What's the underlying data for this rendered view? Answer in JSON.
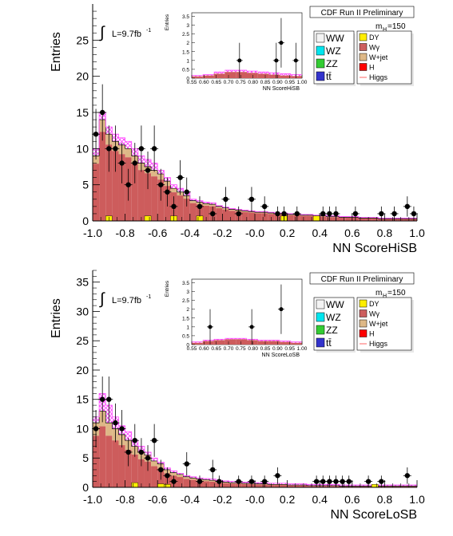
{
  "page": {
    "title": ""
  },
  "legend_entries": {
    "left": [
      {
        "label": "WW",
        "color": "#f4f4f4"
      },
      {
        "label": "WZ",
        "color": "#00e5ee"
      },
      {
        "label": "ZZ",
        "color": "#33cc33"
      },
      {
        "label": "tt̄",
        "color": "#3333cc"
      }
    ],
    "right": [
      {
        "label": "DY",
        "color": "#ffee00"
      },
      {
        "label": "Wγ",
        "color": "#cc5e5e"
      },
      {
        "label": "W+jet",
        "color": "#deb887"
      },
      {
        "label": "H",
        "color": "#ff0000"
      },
      {
        "label": "Higgs",
        "color": "#ff6666",
        "line": true
      }
    ]
  },
  "chart_data": [
    {
      "type": "bar",
      "banner": "CDF Run II Preliminary",
      "mass_label": "m",
      "mass_sub": "H",
      "mass_value": "=150",
      "lumi_label": "L=9.7fb",
      "lumi_sup": "-1",
      "integral_symbol": "∫",
      "xlabel": "NN ScoreHiSB",
      "ylabel": "Entries",
      "xlim": [
        -1.0,
        1.0
      ],
      "ylim": [
        0,
        30
      ],
      "xticks": [
        "-1.0",
        "-0.8",
        "-0.6",
        "-0.4",
        "-0.2",
        "-0.0",
        "0.2",
        "0.4",
        "0.6",
        "0.8",
        "1.0"
      ],
      "xtick_values": [
        -1.0,
        -0.8,
        -0.6,
        -0.4,
        -0.2,
        0.0,
        0.2,
        0.4,
        0.6,
        0.8,
        1.0
      ],
      "yticks": [
        "0",
        "5",
        "10",
        "15",
        "20",
        "25"
      ],
      "ytick_values": [
        0,
        5,
        10,
        15,
        20,
        25
      ],
      "bin_edges_start": -1.0,
      "bin_width": 0.04,
      "background_total": [
        9,
        14,
        12,
        11,
        10.5,
        10,
        9,
        8,
        7.5,
        7,
        6.5,
        5.5,
        4.5,
        4,
        3.5,
        2.8,
        2.6,
        2.4,
        2.3,
        2.0,
        1.8,
        1.6,
        1.5,
        1.4,
        1.3,
        1.2,
        1.2,
        1.1,
        1.0,
        1.0,
        0.9,
        0.9,
        0.8,
        0.8,
        0.7,
        0.7,
        0.6,
        0.6,
        0.5,
        0.5,
        0.5,
        0.4,
        0.4,
        0.4,
        0.3,
        0.3,
        0.3,
        0.3,
        0.3,
        0.3
      ],
      "w_jet_fraction": 0.12,
      "signal_band": [
        10,
        15,
        13,
        12,
        11.5,
        11,
        10,
        9,
        8.5,
        8,
        7,
        6,
        5,
        4.5,
        4,
        3,
        2.8,
        2.6,
        2.5,
        2.1,
        1.9,
        1.7,
        1.6,
        1.5,
        1.4,
        1.3,
        1.3,
        1.2,
        1.1,
        1.1,
        1.0,
        1.0,
        0.9,
        0.9,
        0.8,
        0.8,
        0.7,
        0.7,
        0.6,
        0.6,
        0.6,
        0.5,
        0.5,
        0.5,
        0.4,
        0.4,
        0.4,
        0.4,
        0.4,
        0.4
      ],
      "dy_bins": [
        {
          "x": -0.92,
          "y": 0.7
        },
        {
          "x": -0.68,
          "y": 0.7
        },
        {
          "x": -0.52,
          "y": 0.7
        },
        {
          "x": -0.36,
          "y": 0.7
        },
        {
          "x": 0.16,
          "y": 0.7
        },
        {
          "x": 0.36,
          "y": 0.7
        }
      ],
      "points": [
        {
          "x": -0.98,
          "y": 12,
          "err": 3.5
        },
        {
          "x": -0.94,
          "y": 15,
          "err": 3.9
        },
        {
          "x": -0.9,
          "y": 10,
          "err": 3.2
        },
        {
          "x": -0.86,
          "y": 10,
          "err": 3.2
        },
        {
          "x": -0.82,
          "y": 8,
          "err": 2.8
        },
        {
          "x": -0.78,
          "y": 5,
          "err": 2.2
        },
        {
          "x": -0.74,
          "y": 8,
          "err": 2.8
        },
        {
          "x": -0.7,
          "y": 10,
          "err": 3.2
        },
        {
          "x": -0.66,
          "y": 7,
          "err": 2.6
        },
        {
          "x": -0.62,
          "y": 10,
          "err": 3.2
        },
        {
          "x": -0.58,
          "y": 5,
          "err": 2.2
        },
        {
          "x": -0.54,
          "y": 4,
          "err": 2.0
        },
        {
          "x": -0.5,
          "y": 2,
          "err": 1.4
        },
        {
          "x": -0.46,
          "y": 6,
          "err": 2.4
        },
        {
          "x": -0.42,
          "y": 4,
          "err": 2.0
        },
        {
          "x": -0.34,
          "y": 2,
          "err": 1.4
        },
        {
          "x": -0.26,
          "y": 1,
          "err": 1.0
        },
        {
          "x": -0.18,
          "y": 3,
          "err": 1.7
        },
        {
          "x": -0.1,
          "y": 1,
          "err": 1.0
        },
        {
          "x": -0.02,
          "y": 3,
          "err": 1.7
        },
        {
          "x": 0.06,
          "y": 2,
          "err": 1.4
        },
        {
          "x": 0.14,
          "y": 1,
          "err": 1.0
        },
        {
          "x": 0.18,
          "y": 1,
          "err": 1.0
        },
        {
          "x": 0.26,
          "y": 1,
          "err": 1.0
        },
        {
          "x": 0.42,
          "y": 1,
          "err": 1.0
        },
        {
          "x": 0.46,
          "y": 1,
          "err": 1.0
        },
        {
          "x": 0.5,
          "y": 1,
          "err": 1.0
        },
        {
          "x": 0.62,
          "y": 1,
          "err": 1.0
        },
        {
          "x": 0.78,
          "y": 1,
          "err": 1.0
        },
        {
          "x": 0.86,
          "y": 1,
          "err": 1.0
        },
        {
          "x": 0.94,
          "y": 2,
          "err": 1.4
        },
        {
          "x": 0.98,
          "y": 1,
          "err": 1.0
        }
      ],
      "inset": {
        "xlabel": "NN ScoreHiSB",
        "ylabel": "Entries",
        "xlim": [
          0.55,
          1.0
        ],
        "ylim": [
          0,
          3.7
        ],
        "xticks": [
          "0.55",
          "0.60",
          "0.65",
          "0.70",
          "0.75",
          "0.80",
          "0.85",
          "0.90",
          "0.95",
          "1.00"
        ],
        "xtick_values": [
          0.55,
          0.6,
          0.65,
          0.7,
          0.75,
          0.8,
          0.85,
          0.9,
          0.95,
          1.0
        ],
        "yticks": [
          "0",
          "0.5",
          "1",
          "1.5",
          "2",
          "2.5",
          "3",
          "3.5"
        ],
        "ytick_values": [
          0,
          0.5,
          1,
          1.5,
          2,
          2.5,
          3,
          3.5
        ],
        "background_total": [
          0.1,
          0.15,
          0.25,
          0.35,
          0.35,
          0.3,
          0.25,
          0.2,
          0.15,
          0.12
        ],
        "signal_band": [
          0.15,
          0.2,
          0.35,
          0.45,
          0.45,
          0.4,
          0.35,
          0.3,
          0.25,
          0.2
        ],
        "points": [
          {
            "x": 0.745,
            "y": 1,
            "err": 1.0
          },
          {
            "x": 0.895,
            "y": 1,
            "err": 1.0
          },
          {
            "x": 0.915,
            "y": 2,
            "err": 1.4
          },
          {
            "x": 0.975,
            "y": 1,
            "err": 1.0
          }
        ]
      }
    },
    {
      "type": "bar",
      "banner": "CDF Run II Preliminary",
      "mass_label": "m",
      "mass_sub": "H",
      "mass_value": "=150",
      "lumi_label": "L=9.7fb",
      "lumi_sup": "-1",
      "integral_symbol": "∫",
      "xlabel": "NN ScoreLoSB",
      "ylabel": "Entries",
      "xlim": [
        -1.0,
        1.0
      ],
      "ylim": [
        0,
        37
      ],
      "xticks": [
        "-1.0",
        "-0.8",
        "-0.6",
        "-0.4",
        "-0.2",
        "-0.0",
        "0.2",
        "0.4",
        "0.6",
        "0.8",
        "1.0"
      ],
      "xtick_values": [
        -1.0,
        -0.8,
        -0.6,
        -0.4,
        -0.2,
        0.0,
        0.2,
        0.4,
        0.6,
        0.8,
        1.0
      ],
      "yticks": [
        "0",
        "5",
        "10",
        "15",
        "20",
        "25",
        "30",
        "35"
      ],
      "ytick_values": [
        0,
        5,
        10,
        15,
        20,
        25,
        30,
        35
      ],
      "bin_edges_start": -1.0,
      "bin_width": 0.04,
      "background_total": [
        11,
        13,
        11,
        10,
        9,
        8,
        7,
        6,
        5.5,
        4.5,
        4,
        3,
        2.5,
        2.2,
        1.8,
        1.6,
        1.4,
        1.3,
        1.2,
        1.0,
        0.9,
        0.8,
        0.8,
        0.7,
        0.7,
        0.6,
        0.6,
        0.5,
        0.5,
        0.5,
        0.4,
        0.4,
        0.4,
        0.3,
        0.3,
        0.3,
        0.3,
        0.3,
        0.2,
        0.2,
        0.2,
        0.2,
        0.2,
        0.2,
        0.2,
        0.2,
        0.2,
        0.2,
        0.2,
        0.2
      ],
      "w_jet_fraction": 0.2,
      "signal_band": [
        12,
        16,
        14,
        12,
        10.5,
        9.5,
        8,
        7,
        6,
        5,
        4.3,
        3.3,
        2.8,
        2.4,
        2.0,
        1.8,
        1.6,
        1.5,
        1.4,
        1.2,
        1.1,
        1.0,
        1.0,
        0.9,
        0.9,
        0.8,
        0.8,
        0.7,
        0.7,
        0.7,
        0.6,
        0.6,
        0.6,
        0.5,
        0.5,
        0.5,
        0.5,
        0.5,
        0.4,
        0.4,
        0.4,
        0.4,
        0.4,
        0.4,
        0.4,
        0.4,
        0.4,
        0.4,
        0.4,
        0.4
      ],
      "dy_bins": [
        {
          "x": -0.76,
          "y": 0.8
        },
        {
          "x": -0.6,
          "y": 0.6
        },
        {
          "x": -0.56,
          "y": 0.5
        },
        {
          "x": 0.72,
          "y": 0.5
        }
      ],
      "points": [
        {
          "x": -0.98,
          "y": 10,
          "err": 3.2
        },
        {
          "x": -0.94,
          "y": 15,
          "err": 3.9
        },
        {
          "x": -0.9,
          "y": 15,
          "err": 3.9
        },
        {
          "x": -0.86,
          "y": 11,
          "err": 3.3
        },
        {
          "x": -0.82,
          "y": 10,
          "err": 3.2
        },
        {
          "x": -0.78,
          "y": 6,
          "err": 2.4
        },
        {
          "x": -0.74,
          "y": 8,
          "err": 2.8
        },
        {
          "x": -0.7,
          "y": 6,
          "err": 2.4
        },
        {
          "x": -0.66,
          "y": 5,
          "err": 2.2
        },
        {
          "x": -0.62,
          "y": 8,
          "err": 2.8
        },
        {
          "x": -0.58,
          "y": 3,
          "err": 1.7
        },
        {
          "x": -0.54,
          "y": 2,
          "err": 1.4
        },
        {
          "x": -0.5,
          "y": 1,
          "err": 1.0
        },
        {
          "x": -0.42,
          "y": 4,
          "err": 2.0
        },
        {
          "x": -0.34,
          "y": 1,
          "err": 1.0
        },
        {
          "x": -0.26,
          "y": 3,
          "err": 1.7
        },
        {
          "x": -0.22,
          "y": 1,
          "err": 1.0
        },
        {
          "x": -0.1,
          "y": 1,
          "err": 1.0
        },
        {
          "x": -0.02,
          "y": 1,
          "err": 1.0
        },
        {
          "x": 0.06,
          "y": 1,
          "err": 1.0
        },
        {
          "x": 0.14,
          "y": 2,
          "err": 1.4
        },
        {
          "x": 0.38,
          "y": 1,
          "err": 1.0
        },
        {
          "x": 0.42,
          "y": 1,
          "err": 1.0
        },
        {
          "x": 0.46,
          "y": 1,
          "err": 1.0
        },
        {
          "x": 0.5,
          "y": 1,
          "err": 1.0
        },
        {
          "x": 0.54,
          "y": 1,
          "err": 1.0
        },
        {
          "x": 0.58,
          "y": 1,
          "err": 1.0
        },
        {
          "x": 0.7,
          "y": 1,
          "err": 1.0
        },
        {
          "x": 0.78,
          "y": 1,
          "err": 1.0
        },
        {
          "x": 0.94,
          "y": 2,
          "err": 1.4
        }
      ],
      "inset": {
        "xlabel": "NN ScoreLoSB",
        "ylabel": "Entries",
        "xlim": [
          0.55,
          1.0
        ],
        "ylim": [
          0,
          3.7
        ],
        "xticks": [
          "0.55",
          "0.60",
          "0.65",
          "0.70",
          "0.75",
          "0.80",
          "0.85",
          "0.90",
          "0.95",
          "1.00"
        ],
        "xtick_values": [
          0.55,
          0.6,
          0.65,
          0.7,
          0.75,
          0.8,
          0.85,
          0.9,
          0.95,
          1.0
        ],
        "yticks": [
          "0",
          "0.5",
          "1",
          "1.5",
          "2",
          "2.5",
          "3",
          "3.5"
        ],
        "ytick_values": [
          0,
          0.5,
          1,
          1.5,
          2,
          2.5,
          3,
          3.5
        ],
        "background_total": [
          0.1,
          0.2,
          0.25,
          0.3,
          0.3,
          0.25,
          0.2,
          0.2,
          0.15,
          0.1
        ],
        "signal_band": [
          0.15,
          0.25,
          0.3,
          0.35,
          0.35,
          0.3,
          0.25,
          0.25,
          0.2,
          0.15
        ],
        "points": [
          {
            "x": 0.625,
            "y": 1,
            "err": 1.0
          },
          {
            "x": 0.795,
            "y": 1,
            "err": 1.0
          },
          {
            "x": 0.915,
            "y": 2,
            "err": 1.4
          }
        ]
      }
    }
  ]
}
